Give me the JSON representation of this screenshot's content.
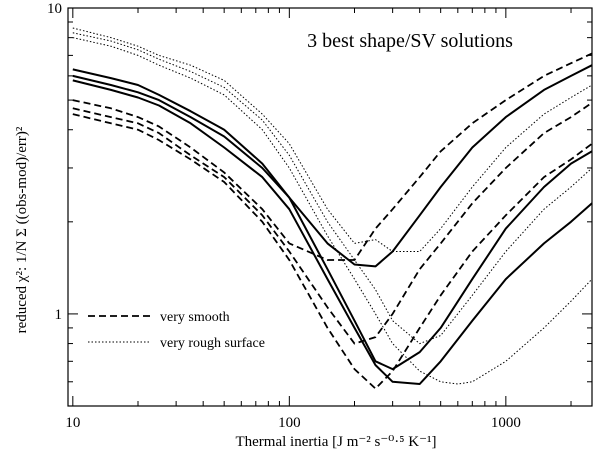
{
  "chart_data": {
    "type": "line",
    "title": "3 best shape/SV solutions",
    "xlabel": "Thermal inertia [J m⁻² s⁻⁰·⁵ K⁻¹]",
    "ylabel": "reduced χ²: 1/N Σ ((obs-mod)/err)²",
    "x_scale": "log",
    "y_scale": "log",
    "xlim": [
      9.5,
      2500
    ],
    "ylim": [
      0.5,
      10
    ],
    "x_ticks": [
      10,
      100,
      1000
    ],
    "x_tick_labels": [
      "10",
      "100",
      "1000"
    ],
    "y_ticks": [
      1,
      10
    ],
    "y_tick_labels": [
      "1",
      "10"
    ],
    "legend": [
      {
        "label": "very smooth",
        "style": "dashed"
      },
      {
        "label": "very rough surface",
        "style": "dotted"
      }
    ],
    "series": [
      {
        "style": "solid",
        "x": [
          10,
          15,
          20,
          25,
          35,
          50,
          75,
          100,
          150,
          200,
          250,
          300,
          400,
          500,
          700,
          1000,
          1500,
          2000,
          2500
        ],
        "y": [
          6.3,
          5.9,
          5.6,
          5.2,
          4.6,
          4.0,
          3.1,
          2.4,
          1.7,
          1.45,
          1.43,
          1.6,
          2.1,
          2.6,
          3.5,
          4.4,
          5.4,
          6.0,
          6.5
        ]
      },
      {
        "style": "solid",
        "x": [
          10,
          15,
          20,
          25,
          35,
          50,
          75,
          100,
          150,
          200,
          250,
          300,
          400,
          500,
          700,
          1000,
          1500,
          2000,
          2500
        ],
        "y": [
          6.0,
          5.6,
          5.3,
          5.0,
          4.4,
          3.8,
          3.0,
          2.4,
          1.4,
          0.95,
          0.7,
          0.66,
          0.75,
          0.9,
          1.3,
          1.9,
          2.6,
          3.1,
          3.4
        ]
      },
      {
        "style": "solid",
        "x": [
          10,
          15,
          20,
          25,
          35,
          50,
          75,
          100,
          150,
          200,
          250,
          300,
          400,
          500,
          700,
          1000,
          1500,
          2000,
          2500
        ],
        "y": [
          5.8,
          5.4,
          5.1,
          4.8,
          4.2,
          3.5,
          2.8,
          2.2,
          1.3,
          0.9,
          0.68,
          0.6,
          0.59,
          0.7,
          0.95,
          1.3,
          1.7,
          2.0,
          2.3
        ]
      },
      {
        "style": "dashed",
        "x": [
          10,
          15,
          20,
          25,
          35,
          50,
          75,
          100,
          150,
          200,
          250,
          300,
          400,
          500,
          700,
          1000,
          1500,
          2000,
          2500
        ],
        "y": [
          5.0,
          4.7,
          4.4,
          4.1,
          3.5,
          2.9,
          2.2,
          1.7,
          1.5,
          1.5,
          1.9,
          2.2,
          2.8,
          3.4,
          4.2,
          5.0,
          6.0,
          6.6,
          7.1
        ]
      },
      {
        "style": "dashed",
        "x": [
          10,
          15,
          20,
          25,
          35,
          50,
          75,
          100,
          150,
          200,
          250,
          300,
          400,
          500,
          700,
          1000,
          1500,
          2000,
          2500
        ],
        "y": [
          4.7,
          4.4,
          4.2,
          3.9,
          3.3,
          2.8,
          2.1,
          1.6,
          1.05,
          0.8,
          0.84,
          1.0,
          1.4,
          1.7,
          2.3,
          3.0,
          3.9,
          4.4,
          4.9
        ]
      },
      {
        "style": "dashed",
        "x": [
          10,
          15,
          20,
          25,
          35,
          50,
          75,
          100,
          150,
          200,
          250,
          300,
          400,
          500,
          700,
          1000,
          1500,
          2000,
          2500
        ],
        "y": [
          4.5,
          4.2,
          4.0,
          3.7,
          3.2,
          2.7,
          2.0,
          1.5,
          0.9,
          0.66,
          0.57,
          0.65,
          0.9,
          1.15,
          1.6,
          2.1,
          2.8,
          3.2,
          3.6
        ]
      },
      {
        "style": "dotted",
        "x": [
          10,
          15,
          20,
          25,
          35,
          50,
          75,
          100,
          150,
          200,
          250,
          300,
          400,
          500,
          700,
          1000,
          1500,
          2000,
          2500
        ],
        "y": [
          8.6,
          8.0,
          7.5,
          7.0,
          6.5,
          5.8,
          4.5,
          3.6,
          2.2,
          1.7,
          1.75,
          1.6,
          1.6,
          1.9,
          2.6,
          3.5,
          4.5,
          5.1,
          5.6
        ]
      },
      {
        "style": "dotted",
        "x": [
          10,
          15,
          20,
          25,
          35,
          50,
          75,
          100,
          150,
          200,
          250,
          300,
          400,
          500,
          700,
          1000,
          1500,
          2000,
          2500
        ],
        "y": [
          8.3,
          7.8,
          7.3,
          6.8,
          6.2,
          5.5,
          4.3,
          3.3,
          2.0,
          1.5,
          1.2,
          0.95,
          0.8,
          0.85,
          1.15,
          1.6,
          2.2,
          2.6,
          3.0
        ]
      },
      {
        "style": "dotted",
        "x": [
          10,
          15,
          20,
          25,
          35,
          50,
          75,
          100,
          150,
          200,
          250,
          300,
          400,
          500,
          600,
          700,
          1000,
          1500,
          2000,
          2500
        ],
        "y": [
          8.0,
          7.5,
          7.0,
          6.5,
          5.9,
          5.2,
          4.0,
          3.0,
          1.8,
          1.3,
          1.0,
          0.8,
          0.65,
          0.6,
          0.59,
          0.6,
          0.7,
          0.9,
          1.1,
          1.3
        ]
      }
    ]
  }
}
